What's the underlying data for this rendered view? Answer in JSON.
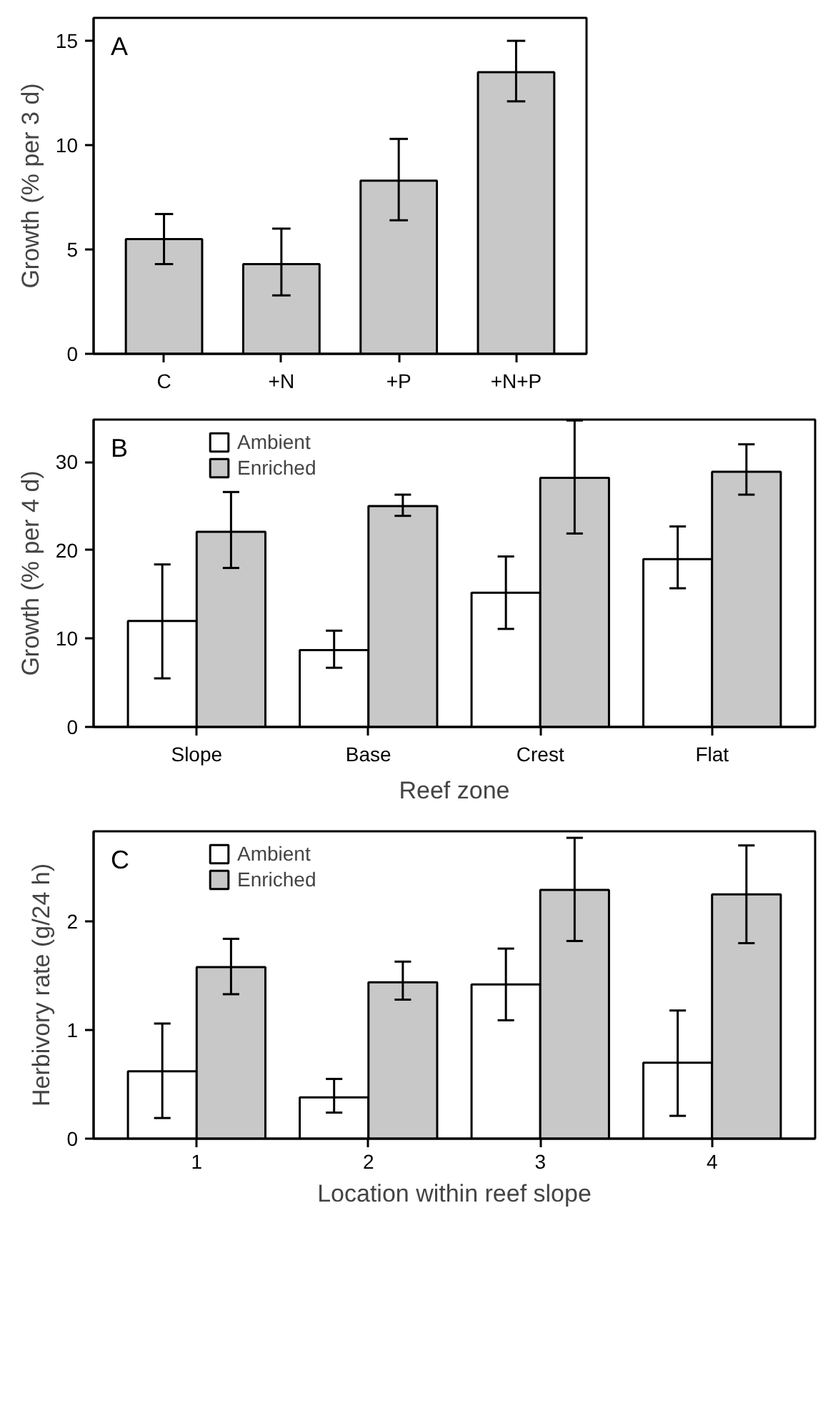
{
  "chart_data": [
    {
      "type": "bar",
      "annotations": [
        "A"
      ],
      "ylabel": "Growth (% per 3 d)",
      "categories": [
        "C",
        "+N",
        "+P",
        "+N+P"
      ],
      "ylim": [
        0,
        16.1
      ],
      "yticks": [
        0,
        5,
        10,
        15
      ],
      "grid": false,
      "legend": false,
      "series": [
        {
          "color": "#c8c8c8",
          "values": [
            5.5,
            4.3,
            8.3,
            13.5
          ],
          "errors": [
            [
              4.3,
              6.7
            ],
            [
              2.8,
              6.0
            ],
            [
              6.4,
              10.3
            ],
            [
              12.1,
              15.0
            ]
          ]
        }
      ]
    },
    {
      "type": "bar",
      "annotations": [
        "B"
      ],
      "ylabel": "Growth (% per 4 d)",
      "xlabel": "Reef zone",
      "categories": [
        "Slope",
        "Base",
        "Crest",
        "Flat"
      ],
      "ylim": [
        0,
        34.8
      ],
      "yticks": [
        0,
        10,
        20,
        30
      ],
      "grid": false,
      "legend": "top left",
      "series": [
        {
          "name": "Ambient",
          "color": "#ffffff",
          "values": [
            12.0,
            8.7,
            15.2,
            19.0
          ],
          "errors": [
            [
              5.5,
              18.4
            ],
            [
              6.7,
              10.9
            ],
            [
              11.1,
              19.3
            ],
            [
              15.7,
              22.7
            ]
          ]
        },
        {
          "name": "Enriched",
          "color": "#c8c8c8",
          "values": [
            22.1,
            25.0,
            28.2,
            28.9
          ],
          "errors": [
            [
              18.0,
              26.6
            ],
            [
              23.9,
              26.3
            ],
            [
              21.9,
              34.7
            ],
            [
              26.3,
              32.0
            ]
          ]
        }
      ]
    },
    {
      "type": "bar",
      "annotations": [
        "C"
      ],
      "ylabel": "Herbivory rate (g/24 h)",
      "xlabel": "Location within reef slope",
      "categories": [
        "1",
        "2",
        "3",
        "4"
      ],
      "ylim": [
        0,
        2.83
      ],
      "yticks": [
        0,
        1,
        2
      ],
      "grid": false,
      "legend": "top left",
      "series": [
        {
          "name": "Ambient",
          "color": "#ffffff",
          "values": [
            0.62,
            0.38,
            1.42,
            0.7
          ],
          "errors": [
            [
              0.19,
              1.06
            ],
            [
              0.24,
              0.55
            ],
            [
              1.09,
              1.75
            ],
            [
              0.21,
              1.18
            ]
          ]
        },
        {
          "name": "Enriched",
          "color": "#c8c8c8",
          "values": [
            1.58,
            1.44,
            2.29,
            2.25
          ],
          "errors": [
            [
              1.33,
              1.84
            ],
            [
              1.28,
              1.63
            ],
            [
              1.82,
              2.77
            ],
            [
              1.8,
              2.7
            ]
          ]
        }
      ]
    }
  ]
}
